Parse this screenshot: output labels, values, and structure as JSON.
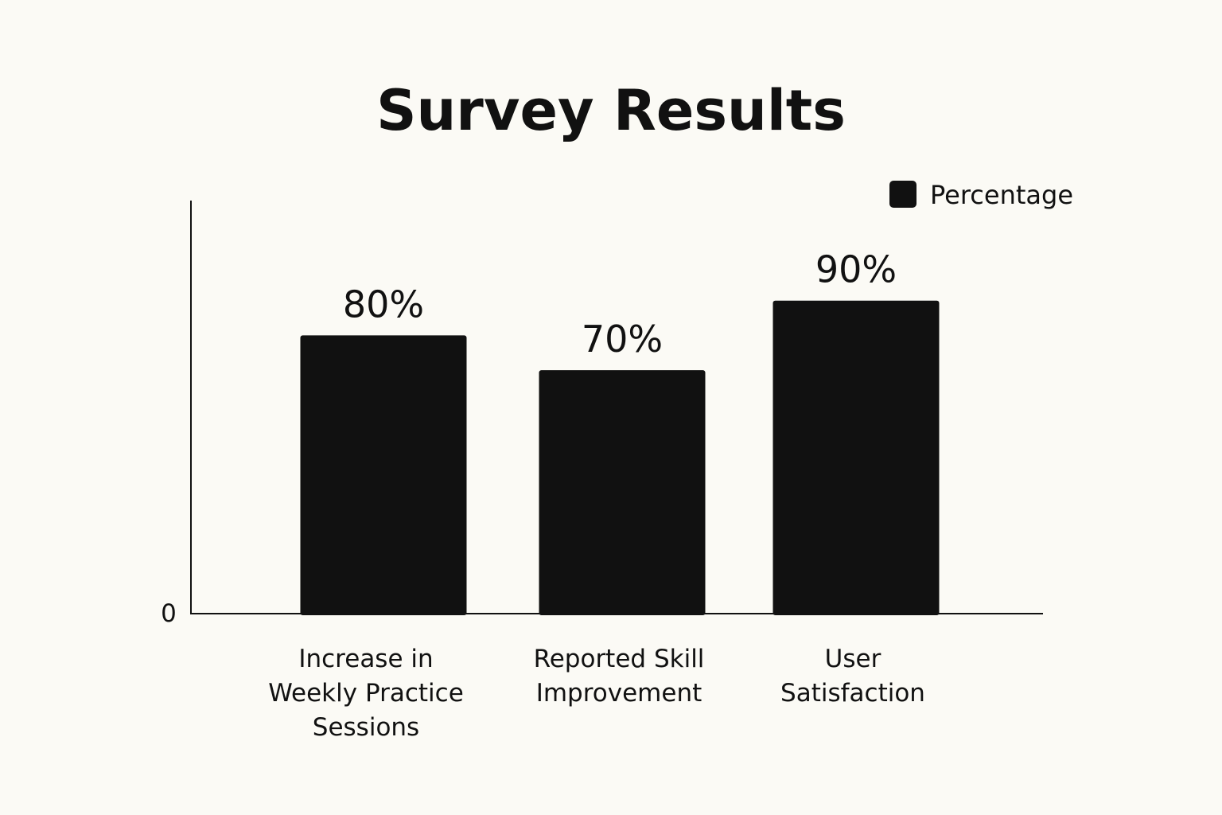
{
  "chart_data": {
    "type": "bar",
    "title": "Survey Results",
    "xlabel": "",
    "ylabel": "",
    "categories": [
      [
        "Increase in",
        "Weekly Practice",
        "Sessions"
      ],
      [
        "Reported Skill",
        "Improvement"
      ],
      [
        "User",
        "Satisfaction"
      ]
    ],
    "series": [
      {
        "name": "Percentage",
        "values": [
          80,
          70,
          90
        ],
        "labels": [
          "80%",
          "70%",
          "90%"
        ],
        "color": "#111111"
      }
    ],
    "y_tick_labels": [
      "0"
    ],
    "ylim": [
      0,
      105
    ],
    "grid": false,
    "legend_position": "top-right"
  }
}
